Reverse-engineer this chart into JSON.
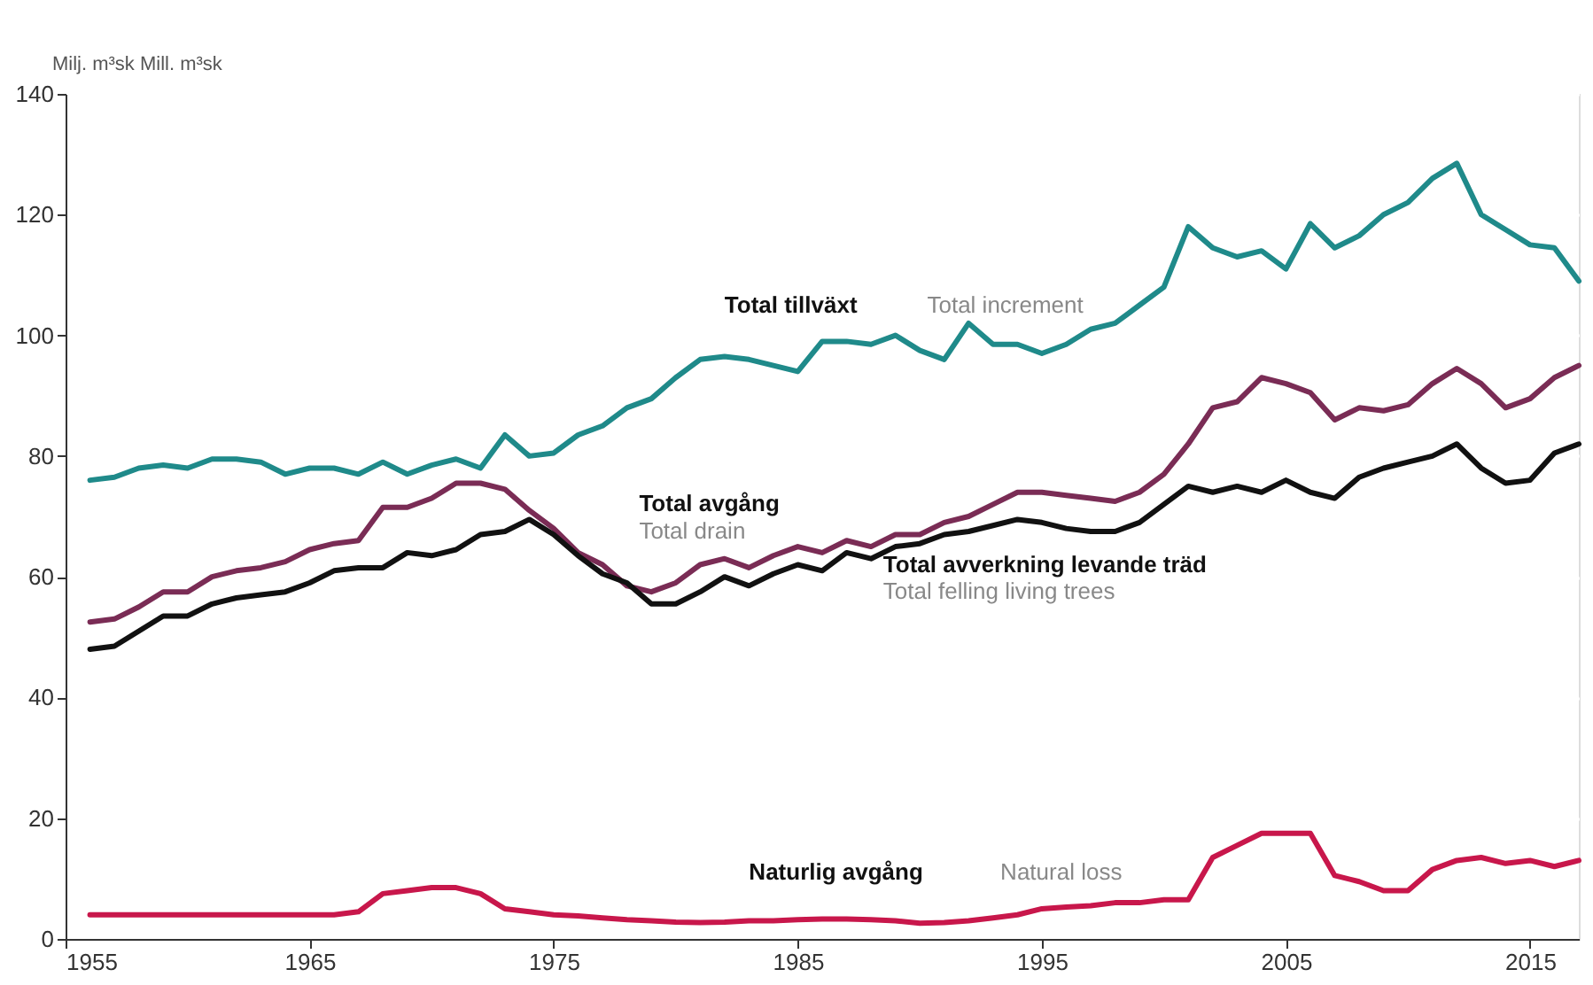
{
  "chart_data": {
    "type": "line",
    "ylabel": "Milj. m³sk Mill. m³sk",
    "x": [
      1956,
      1957,
      1958,
      1959,
      1960,
      1961,
      1962,
      1963,
      1964,
      1965,
      1966,
      1967,
      1968,
      1969,
      1970,
      1971,
      1972,
      1973,
      1974,
      1975,
      1976,
      1977,
      1978,
      1979,
      1980,
      1981,
      1982,
      1983,
      1984,
      1985,
      1986,
      1987,
      1988,
      1989,
      1990,
      1991,
      1992,
      1993,
      1994,
      1995,
      1996,
      1997,
      1998,
      1999,
      2000,
      2001,
      2002,
      2003,
      2004,
      2005,
      2006,
      2007,
      2008,
      2009,
      2010,
      2011,
      2012,
      2013,
      2014,
      2015,
      2016,
      2017
    ],
    "series": [
      {
        "name": "Total tillväxt",
        "color": "#1f8a8a",
        "values": [
          76,
          76.5,
          78,
          78.5,
          78,
          79.5,
          79.5,
          79,
          77,
          78,
          78,
          77,
          79,
          77,
          78.5,
          79.5,
          78,
          83.5,
          80,
          80.5,
          83.5,
          85,
          88,
          89.5,
          93,
          96,
          96.5,
          96,
          95,
          94,
          99,
          99,
          98.5,
          100,
          97.5,
          96,
          102,
          98.5,
          98.5,
          97,
          98.5,
          101,
          102,
          105,
          108,
          118,
          114.5,
          113,
          114,
          111,
          118.5,
          114.5,
          116.5,
          120,
          122,
          126,
          128.5,
          120,
          117.5,
          115,
          114.5,
          109
        ]
      },
      {
        "name": "Total avgång",
        "color": "#7a2c55",
        "values": [
          52.5,
          53,
          55,
          57.5,
          57.5,
          60,
          61,
          61.5,
          62.5,
          64.5,
          65.5,
          66,
          71.5,
          71.5,
          73,
          75.5,
          75.5,
          74.5,
          71,
          68,
          64,
          62,
          58.5,
          57.5,
          59,
          62,
          63,
          61.5,
          63.5,
          65,
          64,
          66,
          65,
          67,
          67,
          69,
          70,
          72,
          74,
          74,
          73.5,
          73,
          72.5,
          74,
          77,
          82,
          88,
          89,
          93,
          92,
          90.5,
          86,
          88,
          87.5,
          88.5,
          92,
          94.5,
          92,
          88,
          89.5,
          93,
          95
        ]
      },
      {
        "name": "Total avverkning levande träd",
        "color": "#111111",
        "values": [
          48,
          48.5,
          51,
          53.5,
          53.5,
          55.5,
          56.5,
          57,
          57.5,
          59,
          61,
          61.5,
          61.5,
          64,
          63.5,
          64.5,
          67,
          67.5,
          69.5,
          67,
          63.5,
          60.5,
          59,
          55.5,
          55.5,
          57.5,
          60,
          58.5,
          60.5,
          62,
          61,
          64,
          63,
          65,
          65.5,
          67,
          67.5,
          68.5,
          69.5,
          69,
          68,
          67.5,
          67.5,
          69,
          72,
          75,
          74,
          75,
          74,
          76,
          74,
          73,
          76.5,
          78,
          79,
          80,
          82,
          78,
          75.5,
          76,
          80.5,
          82
        ]
      },
      {
        "name": "Naturlig avgång",
        "color": "#c8174b",
        "values": [
          4,
          4,
          4,
          4,
          4,
          4,
          4,
          4,
          4,
          4,
          4,
          4.5,
          7.5,
          8,
          8.5,
          8.5,
          7.5,
          5,
          4.5,
          4,
          3.8,
          3.5,
          3.2,
          3,
          2.8,
          2.7,
          2.8,
          3,
          3,
          3.2,
          3.3,
          3.3,
          3.2,
          3,
          2.6,
          2.7,
          3,
          3.5,
          4,
          5,
          5.3,
          5.5,
          6,
          6,
          6.5,
          6.5,
          13.5,
          15.5,
          17.5,
          17.5,
          17.5,
          10.5,
          9.5,
          8,
          8,
          11.5,
          13,
          13.5,
          12.5,
          13,
          12,
          13
        ]
      }
    ],
    "annotations": [
      "Total increment",
      "Total drain",
      "Total felling living trees",
      "Natural loss"
    ],
    "xlim": [
      1955,
      2017
    ],
    "xticks": [
      1955,
      1965,
      1975,
      1985,
      1995,
      2005,
      2015
    ],
    "ylim": [
      0,
      140
    ],
    "yticks": [
      0,
      20,
      40,
      60,
      80,
      100,
      120,
      140
    ],
    "grid": true,
    "legend": false,
    "line_style": "solid"
  }
}
